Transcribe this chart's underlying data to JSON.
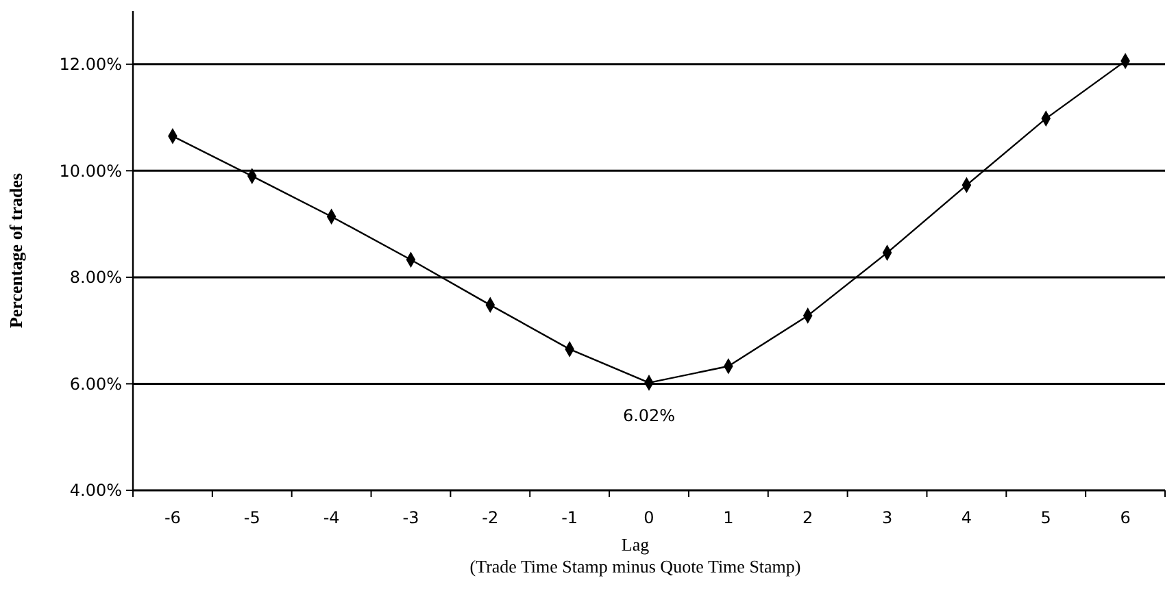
{
  "chart_data": {
    "type": "line",
    "xlabel": "Lag\n(Trade Time Stamp minus Quote Time Stamp)",
    "ylabel": "Percentage of trades",
    "categories": [
      "-6",
      "-5",
      "-4",
      "-3",
      "-2",
      "-1",
      "0",
      "1",
      "2",
      "3",
      "4",
      "5",
      "6"
    ],
    "series": [
      {
        "color": "#000000",
        "values": [
          10.65,
          9.9,
          9.14,
          8.33,
          7.48,
          6.65,
          6.02,
          6.33,
          7.28,
          8.46,
          9.73,
          10.98,
          12.06
        ]
      }
    ],
    "ylim": [
      4,
      13
    ],
    "yticks": [
      {
        "value": 4,
        "label": "4.00%"
      },
      {
        "value": 6,
        "label": "6.00%"
      },
      {
        "value": 8,
        "label": "8.00%"
      },
      {
        "value": 10,
        "label": "10.00%"
      },
      {
        "value": 12,
        "label": "12.00%"
      }
    ],
    "grid": "y",
    "marker": "diamond",
    "line_style": "solid",
    "annotations": [
      {
        "text": "6.02%",
        "x": "0",
        "y": 6.02
      }
    ]
  }
}
